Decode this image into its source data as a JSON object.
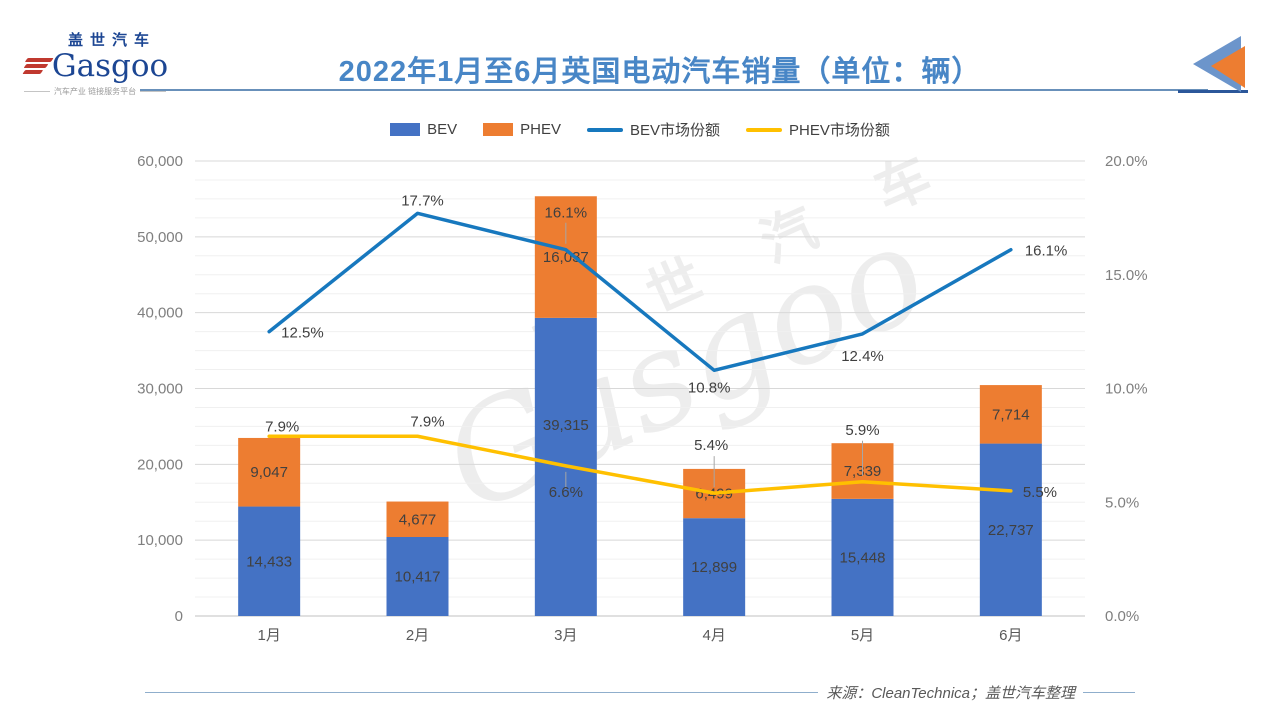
{
  "header": {
    "logo": {
      "cn": "盖世汽车",
      "en": "Gasgoo",
      "tagline": "汽车产业 链接服务平台"
    },
    "title": "2022年1月至6月英国电动汽车销量（单位：辆）"
  },
  "legend": [
    {
      "id": "bev",
      "label": "BEV",
      "kind": "swatch",
      "color": "#4472C4"
    },
    {
      "id": "phev",
      "label": "PHEV",
      "kind": "swatch",
      "color": "#ED7D31"
    },
    {
      "id": "bev-share",
      "label": "BEV市场份额",
      "kind": "line",
      "color": "#1778BE"
    },
    {
      "id": "phev-share",
      "label": "PHEV市场份额",
      "kind": "line",
      "color": "#FFC000"
    }
  ],
  "chart_data": {
    "type": "combo: stacked bar + line",
    "categories": [
      "1月",
      "2月",
      "3月",
      "4月",
      "5月",
      "6月"
    ],
    "series": [
      {
        "name": "BEV",
        "chart": "bar",
        "stack": "sales",
        "color": "#4472C4",
        "values": [
          14433,
          10417,
          39315,
          12899,
          15448,
          22737
        ],
        "data_labels": [
          "14,433",
          "10,417",
          "39,315",
          "12,899",
          "15,448",
          "22,737"
        ]
      },
      {
        "name": "PHEV",
        "chart": "bar",
        "stack": "sales",
        "color": "#ED7D31",
        "values": [
          9047,
          4677,
          16037,
          6499,
          7339,
          7714
        ],
        "data_labels": [
          "9,047",
          "4,677",
          "16,037",
          "6,499",
          "7,339",
          "7,714"
        ]
      },
      {
        "name": "BEV市场份额",
        "chart": "line",
        "axis": "right",
        "color": "#1778BE",
        "values": [
          12.5,
          17.7,
          16.1,
          10.8,
          12.4,
          16.1
        ],
        "data_labels": [
          "12.5%",
          "17.7%",
          "16.1%",
          "10.8%",
          "12.4%",
          "16.1%"
        ]
      },
      {
        "name": "PHEV市场份额",
        "chart": "line",
        "axis": "right",
        "color": "#FFC000",
        "values": [
          7.9,
          7.9,
          6.6,
          5.4,
          5.9,
          5.5
        ],
        "data_labels": [
          "7.9%",
          "7.9%",
          "6.6%",
          "5.4%",
          "5.9%",
          "5.5%"
        ]
      }
    ],
    "left_axis": {
      "min": 0,
      "max": 60000,
      "step": 10000,
      "tick_labels": [
        "0",
        "10,000",
        "20,000",
        "30,000",
        "40,000",
        "50,000",
        "60,000"
      ]
    },
    "right_axis": {
      "min": 0,
      "max": 20,
      "step": 5,
      "tick_labels": [
        "0.0%",
        "5.0%",
        "10.0%",
        "15.0%",
        "20.0%"
      ]
    },
    "grid": "horizontal; minor every 2,500; major every 10,000",
    "legend_position": "top"
  },
  "watermark": {
    "cn": "盖 世 汽 车",
    "en": "Gasgoo"
  },
  "footer": {
    "source": "来源：CleanTechnica；盖世汽车整理"
  },
  "colors": {
    "bev_bar": "#4472C4",
    "phev_bar": "#ED7D31",
    "bev_line": "#1778BE",
    "phev_line": "#FFC000",
    "title": "#4886C6",
    "grid_major": "#D8D8D8",
    "grid_minor": "#F0F0F0",
    "axis_text": "#7F7F7F",
    "label_text": "#404040"
  }
}
